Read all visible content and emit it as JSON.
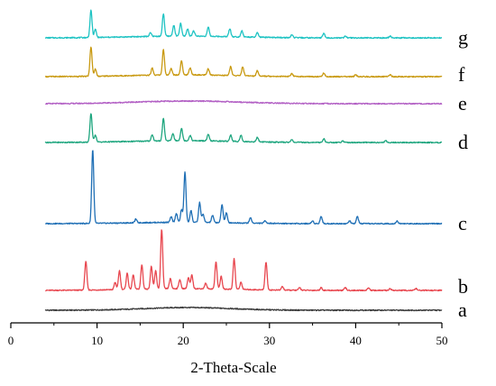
{
  "chart_data": {
    "type": "line",
    "title": "",
    "xlabel": "2-Theta-Scale",
    "ylabel": "",
    "xlim": [
      0,
      50
    ],
    "x_ticks": [
      0,
      10,
      20,
      30,
      40,
      50
    ],
    "x_tick_labels": [
      "0",
      "10",
      "20",
      "30",
      "40",
      "50"
    ],
    "y_axis_shown": false,
    "grid": false,
    "legend": "series labels at right end of each trace",
    "x_range_plotted": [
      4,
      50
    ],
    "series": [
      {
        "name": "a",
        "color": "#3a3a3a",
        "baseline": 0,
        "halo": {
          "center": 20.5,
          "width": 5,
          "height": 3
        },
        "peaks": []
      },
      {
        "name": "b",
        "color": "#e8474f",
        "baseline": 0,
        "halo": {
          "center": 20,
          "width": 6,
          "height": 2
        },
        "peaks": [
          {
            "x": 8.7,
            "h": 32
          },
          {
            "x": 12.1,
            "h": 8
          },
          {
            "x": 12.6,
            "h": 21
          },
          {
            "x": 13.5,
            "h": 18
          },
          {
            "x": 14.2,
            "h": 16
          },
          {
            "x": 15.2,
            "h": 27
          },
          {
            "x": 16.3,
            "h": 25
          },
          {
            "x": 16.8,
            "h": 20
          },
          {
            "x": 17.5,
            "h": 66
          },
          {
            "x": 18.5,
            "h": 11
          },
          {
            "x": 19.6,
            "h": 10
          },
          {
            "x": 20.6,
            "h": 12
          },
          {
            "x": 21.0,
            "h": 15
          },
          {
            "x": 22.6,
            "h": 6
          },
          {
            "x": 23.8,
            "h": 30
          },
          {
            "x": 24.4,
            "h": 14
          },
          {
            "x": 25.9,
            "h": 34
          },
          {
            "x": 26.7,
            "h": 8
          },
          {
            "x": 29.6,
            "h": 31
          },
          {
            "x": 31.5,
            "h": 4
          },
          {
            "x": 33.5,
            "h": 3
          },
          {
            "x": 36.0,
            "h": 3
          },
          {
            "x": 38.8,
            "h": 3
          },
          {
            "x": 41.5,
            "h": 3
          },
          {
            "x": 44.0,
            "h": 2
          },
          {
            "x": 47.0,
            "h": 2
          }
        ]
      },
      {
        "name": "c",
        "color": "#1f6fb5",
        "baseline": 0,
        "halo": {
          "center": 20,
          "width": 6,
          "height": 1.5
        },
        "peaks": [
          {
            "x": 9.5,
            "h": 82
          },
          {
            "x": 14.5,
            "h": 4
          },
          {
            "x": 18.6,
            "h": 6
          },
          {
            "x": 19.2,
            "h": 10
          },
          {
            "x": 19.8,
            "h": 14
          },
          {
            "x": 20.2,
            "h": 56
          },
          {
            "x": 20.9,
            "h": 13
          },
          {
            "x": 21.9,
            "h": 22
          },
          {
            "x": 22.3,
            "h": 9
          },
          {
            "x": 23.4,
            "h": 8
          },
          {
            "x": 24.5,
            "h": 20
          },
          {
            "x": 25.0,
            "h": 11
          },
          {
            "x": 27.8,
            "h": 6
          },
          {
            "x": 29.5,
            "h": 3
          },
          {
            "x": 35.0,
            "h": 3
          },
          {
            "x": 36.0,
            "h": 8
          },
          {
            "x": 39.3,
            "h": 3
          },
          {
            "x": 40.2,
            "h": 8
          },
          {
            "x": 44.8,
            "h": 3
          }
        ]
      },
      {
        "name": "d",
        "color": "#1fa67f",
        "baseline": 0,
        "halo": {
          "center": 20,
          "width": 6,
          "height": 2
        },
        "peaks": [
          {
            "x": 9.3,
            "h": 32
          },
          {
            "x": 9.8,
            "h": 8
          },
          {
            "x": 16.4,
            "h": 7
          },
          {
            "x": 17.7,
            "h": 25
          },
          {
            "x": 18.8,
            "h": 8
          },
          {
            "x": 19.8,
            "h": 14
          },
          {
            "x": 20.8,
            "h": 6
          },
          {
            "x": 22.9,
            "h": 7
          },
          {
            "x": 25.5,
            "h": 7
          },
          {
            "x": 26.7,
            "h": 7
          },
          {
            "x": 28.6,
            "h": 5
          },
          {
            "x": 32.6,
            "h": 3
          },
          {
            "x": 36.3,
            "h": 4
          },
          {
            "x": 38.5,
            "h": 2
          },
          {
            "x": 43.5,
            "h": 2
          }
        ]
      },
      {
        "name": "e",
        "color": "#b25fc4",
        "baseline": 0,
        "halo": {
          "center": 20.5,
          "width": 6,
          "height": 3
        },
        "peaks": []
      },
      {
        "name": "f",
        "color": "#c99a12",
        "baseline": 0,
        "halo": {
          "center": 20,
          "width": 6,
          "height": 2
        },
        "peaks": [
          {
            "x": 9.3,
            "h": 33
          },
          {
            "x": 9.8,
            "h": 8
          },
          {
            "x": 16.4,
            "h": 8
          },
          {
            "x": 17.7,
            "h": 28
          },
          {
            "x": 18.6,
            "h": 7
          },
          {
            "x": 19.8,
            "h": 16
          },
          {
            "x": 20.8,
            "h": 8
          },
          {
            "x": 22.9,
            "h": 7
          },
          {
            "x": 25.5,
            "h": 10
          },
          {
            "x": 26.9,
            "h": 10
          },
          {
            "x": 28.6,
            "h": 6
          },
          {
            "x": 32.6,
            "h": 3
          },
          {
            "x": 36.3,
            "h": 4
          },
          {
            "x": 40.0,
            "h": 2
          },
          {
            "x": 44.0,
            "h": 2
          }
        ]
      },
      {
        "name": "g",
        "color": "#1fc3c3",
        "baseline": 0,
        "halo": {
          "center": 20,
          "width": 6,
          "height": 2
        },
        "peaks": [
          {
            "x": 9.3,
            "h": 30
          },
          {
            "x": 9.8,
            "h": 9
          },
          {
            "x": 16.2,
            "h": 4
          },
          {
            "x": 17.7,
            "h": 25
          },
          {
            "x": 18.9,
            "h": 12
          },
          {
            "x": 19.7,
            "h": 14
          },
          {
            "x": 20.5,
            "h": 8
          },
          {
            "x": 21.2,
            "h": 6
          },
          {
            "x": 22.9,
            "h": 10
          },
          {
            "x": 25.4,
            "h": 9
          },
          {
            "x": 26.8,
            "h": 7
          },
          {
            "x": 28.6,
            "h": 5
          },
          {
            "x": 32.6,
            "h": 3
          },
          {
            "x": 36.3,
            "h": 5
          },
          {
            "x": 38.8,
            "h": 2
          },
          {
            "x": 44.0,
            "h": 2
          }
        ]
      }
    ]
  }
}
